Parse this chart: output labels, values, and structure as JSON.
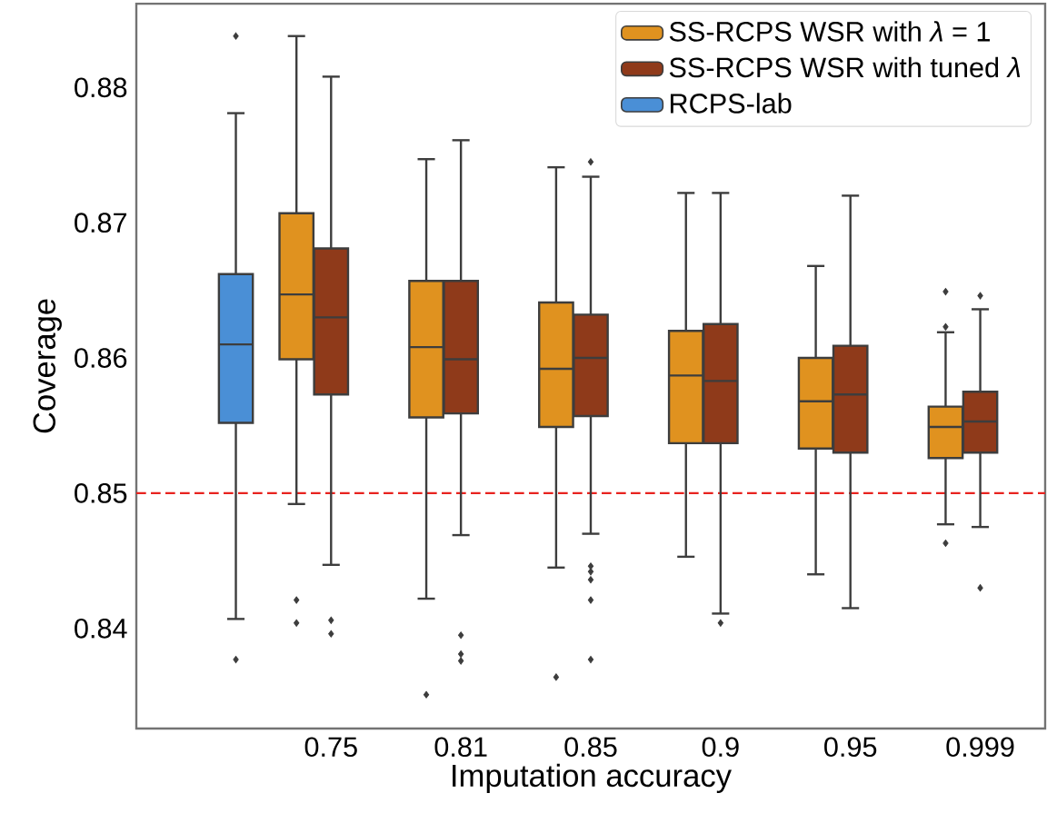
{
  "chart_data": {
    "type": "box",
    "xlabel": "Imputation accuracy",
    "ylabel": "Coverage",
    "categories": [
      null,
      "0.75",
      "0.81",
      "0.85",
      "0.9",
      "0.95",
      "0.999"
    ],
    "series": [
      {
        "name": "SS-RCPS WSR with *λ* = 1",
        "color": "#e0921f",
        "boxes": [
          null,
          {
            "low": 0.8492,
            "q1": 0.8599,
            "median": 0.8647,
            "q3": 0.8707,
            "high": 0.8838,
            "outliers": [
              0.8421,
              0.8404
            ]
          },
          {
            "low": 0.8422,
            "q1": 0.8556,
            "median": 0.8608,
            "q3": 0.8657,
            "high": 0.8747,
            "outliers": [
              0.8351
            ]
          },
          {
            "low": 0.8445,
            "q1": 0.8549,
            "median": 0.8592,
            "q3": 0.8641,
            "high": 0.8741,
            "outliers": [
              0.8364
            ]
          },
          {
            "low": 0.8453,
            "q1": 0.8537,
            "median": 0.8587,
            "q3": 0.862,
            "high": 0.8722
          },
          {
            "low": 0.844,
            "q1": 0.8533,
            "median": 0.8568,
            "q3": 0.86,
            "high": 0.8668
          },
          {
            "low": 0.8477,
            "q1": 0.8526,
            "median": 0.8549,
            "q3": 0.8564,
            "high": 0.8619,
            "outliers": [
              0.8649,
              0.8623,
              0.8463
            ]
          }
        ]
      },
      {
        "name": "SS-RCPS WSR with tuned *λ*",
        "color": "#8f3a1a",
        "boxes": [
          null,
          {
            "low": 0.8447,
            "q1": 0.8573,
            "median": 0.863,
            "q3": 0.8681,
            "high": 0.8808,
            "outliers": [
              0.8406,
              0.8396
            ]
          },
          {
            "low": 0.8469,
            "q1": 0.8559,
            "median": 0.8599,
            "q3": 0.8657,
            "high": 0.8761,
            "outliers": [
              0.8395,
              0.8381,
              0.8376
            ]
          },
          {
            "low": 0.847,
            "q1": 0.8557,
            "median": 0.86,
            "q3": 0.8632,
            "high": 0.8734,
            "outliers": [
              0.8745,
              0.8446,
              0.8442,
              0.8436,
              0.8421,
              0.8377
            ]
          },
          {
            "low": 0.8411,
            "q1": 0.8537,
            "median": 0.8583,
            "q3": 0.8625,
            "high": 0.8722,
            "outliers": [
              0.8404
            ]
          },
          {
            "low": 0.8415,
            "q1": 0.853,
            "median": 0.8573,
            "q3": 0.8609,
            "high": 0.872
          },
          {
            "low": 0.8475,
            "q1": 0.853,
            "median": 0.8553,
            "q3": 0.8575,
            "high": 0.8636,
            "outliers": [
              0.8646,
              0.843
            ]
          }
        ]
      },
      {
        "name": "RCPS-lab",
        "color": "#4a8fd6",
        "boxes": [
          {
            "low": 0.8407,
            "q1": 0.8552,
            "median": 0.861,
            "q3": 0.8662,
            "high": 0.8781,
            "outliers": [
              0.8838,
              0.8377
            ]
          },
          null,
          null,
          null,
          null,
          null,
          null
        ]
      }
    ],
    "ylim": [
      0.8326,
      0.8862
    ],
    "yticks": [
      0.84,
      0.85,
      0.86,
      0.87,
      0.88
    ],
    "ref_lines": [
      {
        "axis": "y",
        "value": 0.85,
        "color": "#e8231f",
        "line_style": "dashed"
      }
    ],
    "legend": "top right"
  }
}
